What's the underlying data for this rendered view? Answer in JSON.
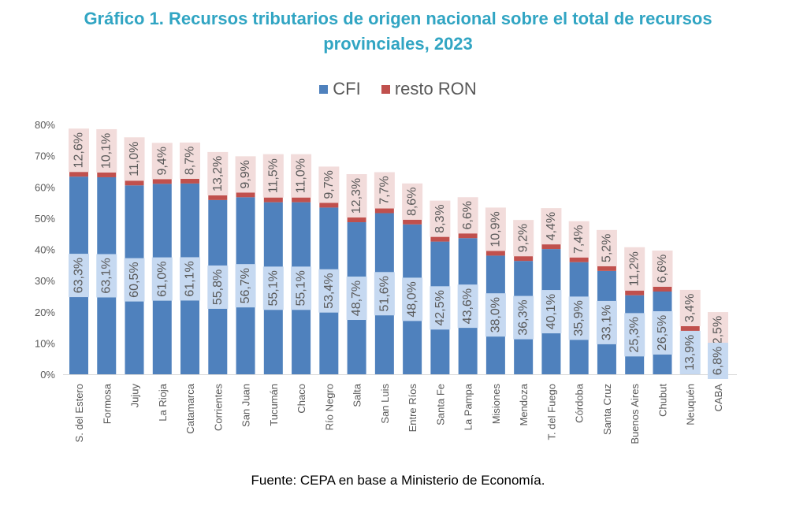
{
  "chart_data": {
    "type": "bar",
    "stacked": true,
    "title": "Gráfico 1. Recursos tributarios de origen nacional sobre el total de recursos provinciales, 2023",
    "title_lines": [
      "Gráfico 1. Recursos tributarios de origen nacional sobre el total de recursos",
      "provinciales, 2023"
    ],
    "xlabel": "",
    "ylabel": "",
    "ylim": [
      0,
      80
    ],
    "yticks": [
      "0%",
      "10%",
      "20%",
      "30%",
      "40%",
      "50%",
      "60%",
      "70%",
      "80%"
    ],
    "grid": false,
    "legend_position": "top",
    "categories": [
      "S. del Estero",
      "Formosa",
      "Jujuy",
      "La Rioja",
      "Catamarca",
      "Corrientes",
      "San Juan",
      "Tucumán",
      "Chaco",
      "Río Negro",
      "Salta",
      "San Luis",
      "Entre Ríos",
      "Santa Fe",
      "La Pampa",
      "Misiones",
      "Mendoza",
      "T. del Fuego",
      "Córdoba",
      "Santa Cruz",
      "Buenos Aires",
      "Chubut",
      "Neuquén",
      "CABA"
    ],
    "series": [
      {
        "name": "CFI",
        "color": "#4f81bd",
        "label_bg": "#c6d9f1",
        "values": [
          63.3,
          63.1,
          60.5,
          61.0,
          61.1,
          55.8,
          56.7,
          55.1,
          55.1,
          53.4,
          48.7,
          51.6,
          48.0,
          42.5,
          43.6,
          38.0,
          36.3,
          40.1,
          35.9,
          33.1,
          25.3,
          26.5,
          13.9,
          6.8
        ],
        "labels": [
          "63,3%",
          "63,1%",
          "60,5%",
          "61,0%",
          "61,1%",
          "55,8%",
          "56,7%",
          "55,1%",
          "55,1%",
          "53,4%",
          "48,7%",
          "51,6%",
          "48,0%",
          "42,5%",
          "43,6%",
          "38,0%",
          "36,3%",
          "40,1%",
          "35,9%",
          "33,1%",
          "25,3%",
          "26,5%",
          "13,9%",
          "6,8%"
        ]
      },
      {
        "name": "resto RON",
        "color": "#c0504d",
        "label_bg": "#f2dcdb",
        "values": [
          12.6,
          10.1,
          11.0,
          9.4,
          8.7,
          13.2,
          9.9,
          11.5,
          11.0,
          9.7,
          12.3,
          7.7,
          8.6,
          8.3,
          6.6,
          10.9,
          9.2,
          4.4,
          7.4,
          5.2,
          11.2,
          6.6,
          3.4,
          2.5
        ],
        "labels": [
          "12,6%",
          "10,1%",
          "11,0%",
          "9,4%",
          "8,7%",
          "13,2%",
          "9,9%",
          "11,5%",
          "11,0%",
          "9,7%",
          "12,3%",
          "7,7%",
          "8,6%",
          "8,3%",
          "6,6%",
          "10,9%",
          "9,2%",
          "4,4%",
          "7,4%",
          "5,2%",
          "11,2%",
          "6,6%",
          "3,4%",
          "2,5%"
        ]
      }
    ]
  },
  "legend": {
    "items": [
      {
        "label": "CFI",
        "color": "#4f81bd"
      },
      {
        "label": "resto RON",
        "color": "#c0504d"
      }
    ]
  },
  "source": "Fuente: CEPA en base a Ministerio de Economía."
}
